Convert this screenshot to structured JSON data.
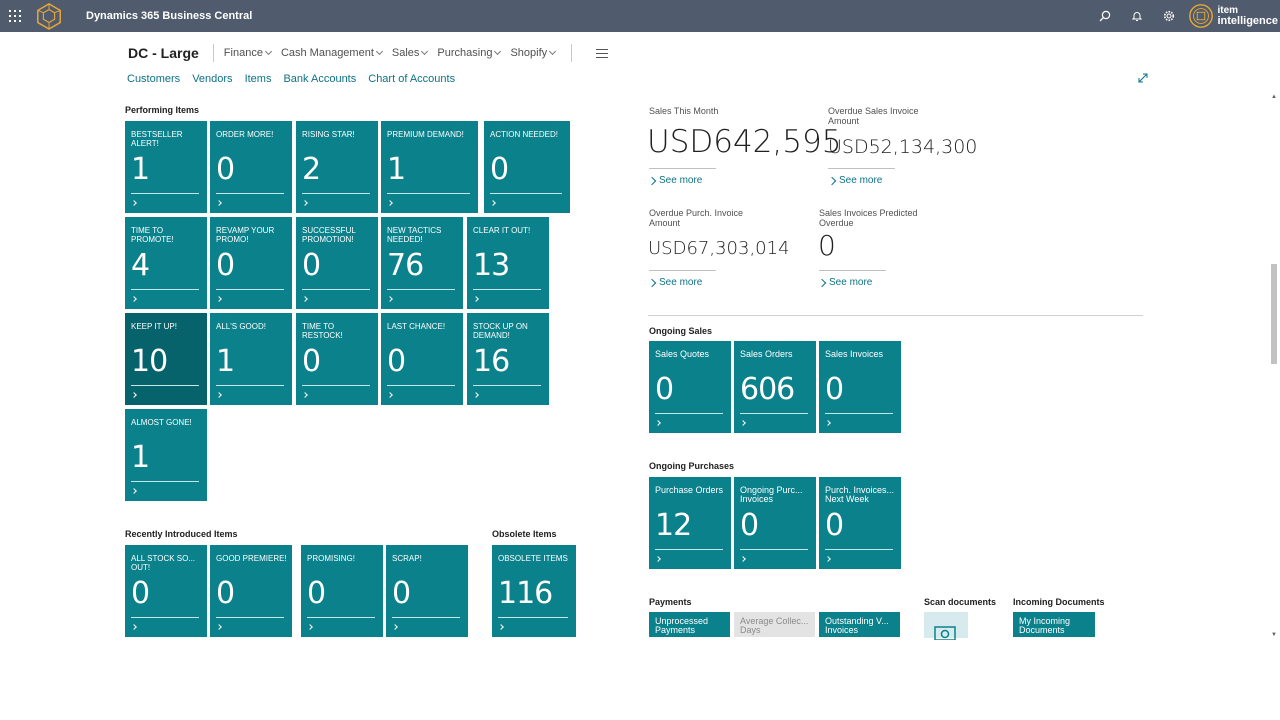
{
  "app": {
    "title": "Dynamics 365 Business Central",
    "brand_line1": "item",
    "brand_line2": "intelligence"
  },
  "colors": {
    "tile": "#0b818b",
    "tile_dark": "#06626b",
    "topbar": "#505c6d",
    "link": "#0e7285"
  },
  "icons": {
    "waffle": "waffle-icon",
    "search": "search-icon",
    "bell": "bell-icon",
    "gear": "gear-icon",
    "expand": "expand-icon"
  },
  "nav": {
    "company": "DC - Large",
    "menus": [
      "Finance",
      "Cash Management",
      "Sales",
      "Purchasing",
      "Shopify"
    ],
    "links": [
      "Customers",
      "Vendors",
      "Items",
      "Bank Accounts",
      "Chart of Accounts"
    ]
  },
  "performing": {
    "title": "Performing Items",
    "tiles": [
      {
        "label": "BESTSELLER ALERT!",
        "value": "1"
      },
      {
        "label": "ORDER MORE!",
        "value": "0"
      },
      {
        "label": "RISING STAR!",
        "value": "2"
      },
      {
        "label": "PREMIUM DEMAND!",
        "value": "1"
      },
      {
        "label": "ACTION NEEDED!",
        "value": "0"
      },
      {
        "label": "TIME TO PROMOTE!",
        "value": "4"
      },
      {
        "label": "REVAMP YOUR PROMO!",
        "value": "0"
      },
      {
        "label": "SUCCESSFUL PROMOTION!",
        "value": "0"
      },
      {
        "label": "NEW TACTICS NEEDED!",
        "value": "76"
      },
      {
        "label": "CLEAR IT OUT!",
        "value": "13"
      },
      {
        "label": "KEEP IT UP!",
        "value": "10"
      },
      {
        "label": "ALL'S GOOD!",
        "value": "1"
      },
      {
        "label": "TIME TO RESTOCK!",
        "value": "0"
      },
      {
        "label": "LAST CHANCE!",
        "value": "0"
      },
      {
        "label": "STOCK UP ON DEMAND!",
        "value": "16"
      },
      {
        "label": "ALMOST GONE!",
        "value": "1"
      }
    ]
  },
  "recent": {
    "title": "Recently Introduced Items",
    "tiles": [
      {
        "label": "ALL STOCK SO... OUT!",
        "value": "0"
      },
      {
        "label": "GOOD PREMIERE!",
        "value": "0"
      },
      {
        "label": "PROMISING!",
        "value": "0"
      },
      {
        "label": "SCRAP!",
        "value": "0"
      }
    ]
  },
  "obsolete": {
    "title": "Obsolete Items",
    "tiles": [
      {
        "label": "OBSOLETE ITEMS",
        "value": "116"
      }
    ]
  },
  "kpis": [
    {
      "label": "Sales This Month",
      "value": "USD642,595",
      "more": "See more"
    },
    {
      "label": "Overdue Sales Invoice Amount",
      "value": "USD52,134,300",
      "more": "See more"
    },
    {
      "label": "Overdue Purch. Invoice Amount",
      "value": "USD67,303,014",
      "more": "See more"
    },
    {
      "label": "Sales Invoices Predicted Overdue",
      "value": "0",
      "more": "See more"
    }
  ],
  "ongoing_sales": {
    "title": "Ongoing Sales",
    "tiles": [
      {
        "label": "Sales Quotes",
        "value": "0"
      },
      {
        "label": "Sales Orders",
        "value": "606"
      },
      {
        "label": "Sales Invoices",
        "value": "0"
      }
    ]
  },
  "ongoing_purchases": {
    "title": "Ongoing Purchases",
    "tiles": [
      {
        "label": "Purchase Orders",
        "value": "12"
      },
      {
        "label": "Ongoing Purc... Invoices",
        "value": "0"
      },
      {
        "label": "Purch. Invoices... Next Week",
        "value": "0"
      }
    ]
  },
  "payments": {
    "title": "Payments",
    "tiles": [
      {
        "label": "Unprocessed Payments"
      },
      {
        "label": "Average Collec... Days"
      },
      {
        "label": "Outstanding V... Invoices"
      }
    ]
  },
  "scan": {
    "title": "Scan documents"
  },
  "incoming": {
    "title": "Incoming Documents",
    "tiles": [
      {
        "label": "My Incoming Documents"
      }
    ]
  }
}
